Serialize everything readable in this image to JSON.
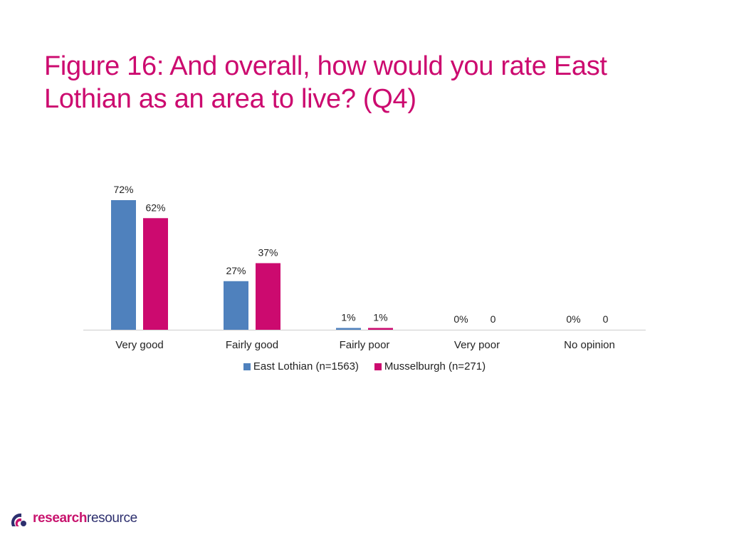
{
  "slide": {
    "title": "Figure 16: And overall, how would you rate East Lothian as an area to live? (Q4)"
  },
  "chart_data": {
    "type": "bar",
    "categories": [
      "Very good",
      "Fairly good",
      "Fairly poor",
      "Very poor",
      "No opinion"
    ],
    "series": [
      {
        "name": "East Lothian (n=1563)",
        "color": "#4f81bd",
        "values": [
          72,
          27,
          1,
          0,
          0
        ],
        "labels": [
          "72%",
          "27%",
          "1%",
          "0%",
          "0%"
        ]
      },
      {
        "name": "Musselburgh (n=271)",
        "color": "#cc0a6f",
        "values": [
          62,
          37,
          1,
          0,
          0
        ],
        "labels": [
          "62%",
          "37%",
          "1%",
          "0",
          "0"
        ]
      }
    ],
    "ylim": [
      0,
      72
    ],
    "grid": false,
    "legend_position": "bottom"
  },
  "footer": {
    "logo_bold": "research",
    "logo_light": "resource"
  },
  "colors": {
    "title": "#cc0a6f",
    "axis": "#d9d9d9"
  }
}
